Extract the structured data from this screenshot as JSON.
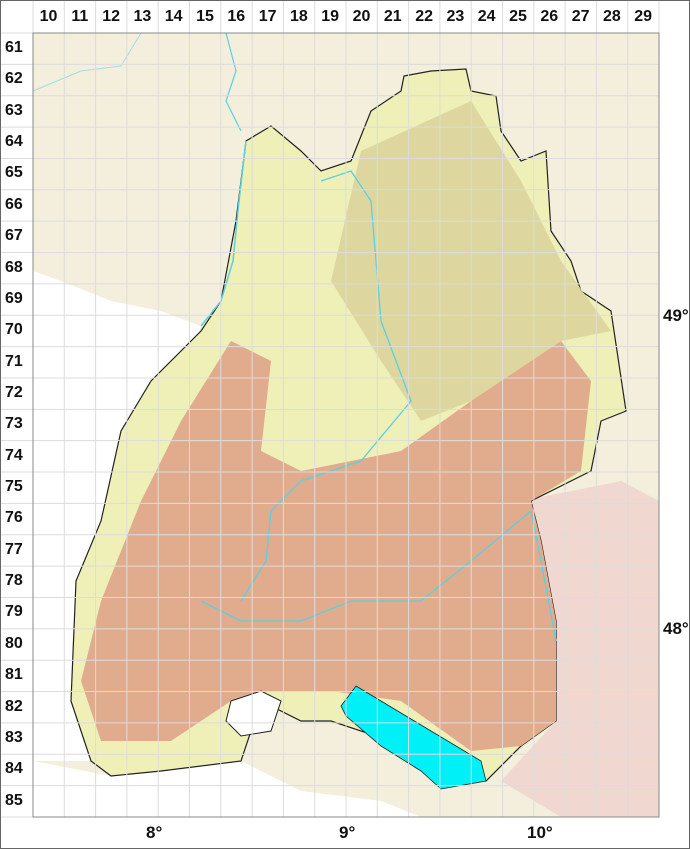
{
  "grid": {
    "columns": [
      "10",
      "11",
      "12",
      "13",
      "14",
      "15",
      "16",
      "17",
      "18",
      "19",
      "20",
      "21",
      "22",
      "23",
      "24",
      "25",
      "26",
      "27",
      "28",
      "29"
    ],
    "rows": [
      "61",
      "62",
      "63",
      "64",
      "65",
      "66",
      "67",
      "68",
      "69",
      "70",
      "71",
      "72",
      "73",
      "74",
      "75",
      "76",
      "77",
      "78",
      "79",
      "80",
      "81",
      "82",
      "83",
      "84",
      "85"
    ]
  },
  "latitude_labels": [
    "49°",
    "48°"
  ],
  "longitude_labels": [
    "8°",
    "9°",
    "10°"
  ],
  "colors": {
    "lowland": "#eef0b8",
    "midland": "#d9d29a",
    "upland": "#e1ac8e",
    "water": "#00f0f8",
    "river": "#5ad0e0",
    "neighbor": "#f3efdc",
    "austria": "#f0d8d0",
    "grid": "#dcdcdc"
  }
}
